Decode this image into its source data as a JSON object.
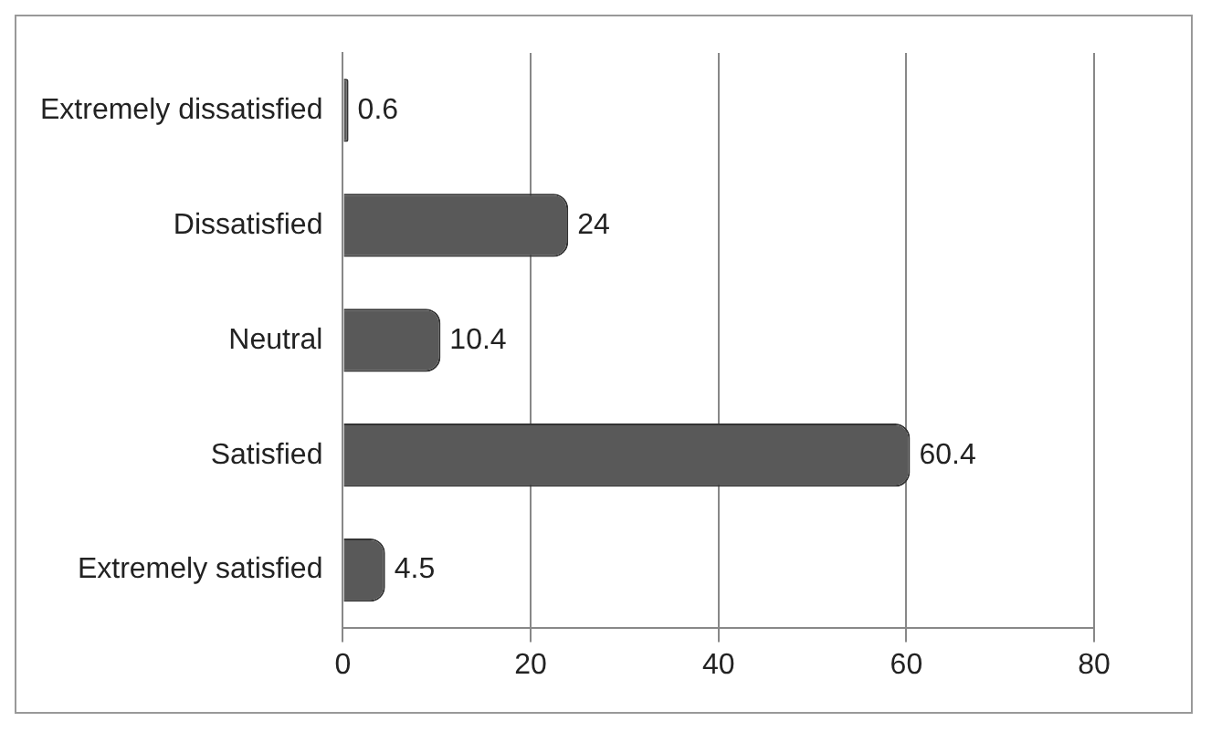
{
  "chart_data": {
    "type": "bar",
    "orientation": "horizontal",
    "categories": [
      "Extremely dissatisfied",
      "Dissatisfied",
      "Neutral",
      "Satisfied",
      "Extremely satisfied"
    ],
    "values": [
      0.6,
      24,
      10.4,
      60.4,
      4.5
    ],
    "color": "#595959",
    "xlim": [
      0,
      80
    ],
    "xticks": [
      0,
      20,
      40,
      60,
      80
    ],
    "grid": "x",
    "data_labels": true
  }
}
